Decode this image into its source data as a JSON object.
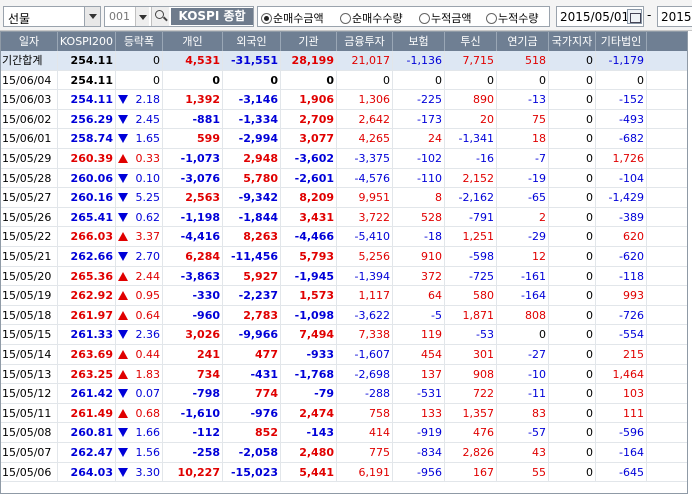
{
  "toolbar": {
    "market_select": "선물",
    "code": "001",
    "index_name": "KOSPI 종합",
    "radio_options": [
      {
        "label": "순매수금액",
        "selected": true
      },
      {
        "label": "순매수수량",
        "selected": false
      },
      {
        "label": "누적금액",
        "selected": false
      },
      {
        "label": "누적수량",
        "selected": false
      }
    ],
    "start_date": "2015/05/01",
    "end_date_partial": "2015",
    "date_separator": "-"
  },
  "table": {
    "columns": [
      "일자",
      "KOSPI200",
      "등락폭",
      "개인",
      "외국인",
      "기관",
      "금융투자",
      "보험",
      "투신",
      "연기금",
      "국가지자",
      "기타법인"
    ],
    "rows": [
      {
        "date": "기간합계",
        "kospi": "254.11",
        "dir": "none",
        "chg": "0",
        "indiv": "4,531",
        "foreign": "-31,551",
        "inst": "28,199",
        "fin": "21,017",
        "ins": "-1,136",
        "trust": "7,715",
        "pension": "518",
        "gov": "0",
        "other": "-1,179"
      },
      {
        "date": "15/06/04",
        "kospi": "254.11",
        "dir": "none",
        "chg": "0",
        "indiv": "0",
        "foreign": "0",
        "inst": "0",
        "fin": "0",
        "ins": "0",
        "trust": "0",
        "pension": "0",
        "gov": "0",
        "other": "0"
      },
      {
        "date": "15/06/03",
        "kospi": "254.11",
        "dir": "dn",
        "chg": "2.18",
        "indiv": "1,392",
        "foreign": "-3,146",
        "inst": "1,906",
        "fin": "1,306",
        "ins": "-225",
        "trust": "890",
        "pension": "-13",
        "gov": "0",
        "other": "-152"
      },
      {
        "date": "15/06/02",
        "kospi": "256.29",
        "dir": "dn",
        "chg": "2.45",
        "indiv": "-881",
        "foreign": "-1,334",
        "inst": "2,709",
        "fin": "2,642",
        "ins": "-173",
        "trust": "20",
        "pension": "75",
        "gov": "0",
        "other": "-493"
      },
      {
        "date": "15/06/01",
        "kospi": "258.74",
        "dir": "dn",
        "chg": "1.65",
        "indiv": "599",
        "foreign": "-2,994",
        "inst": "3,077",
        "fin": "4,265",
        "ins": "24",
        "trust": "-1,341",
        "pension": "18",
        "gov": "0",
        "other": "-682"
      },
      {
        "date": "15/05/29",
        "kospi": "260.39",
        "dir": "up",
        "chg": "0.33",
        "indiv": "-1,073",
        "foreign": "2,948",
        "inst": "-3,602",
        "fin": "-3,375",
        "ins": "-102",
        "trust": "-16",
        "pension": "-7",
        "gov": "0",
        "other": "1,726"
      },
      {
        "date": "15/05/28",
        "kospi": "260.06",
        "dir": "dn",
        "chg": "0.10",
        "indiv": "-3,076",
        "foreign": "5,780",
        "inst": "-2,601",
        "fin": "-4,576",
        "ins": "-110",
        "trust": "2,152",
        "pension": "-19",
        "gov": "0",
        "other": "-104"
      },
      {
        "date": "15/05/27",
        "kospi": "260.16",
        "dir": "dn",
        "chg": "5.25",
        "indiv": "2,563",
        "foreign": "-9,342",
        "inst": "8,209",
        "fin": "9,951",
        "ins": "8",
        "trust": "-2,162",
        "pension": "-65",
        "gov": "0",
        "other": "-1,429"
      },
      {
        "date": "15/05/26",
        "kospi": "265.41",
        "dir": "dn",
        "chg": "0.62",
        "indiv": "-1,198",
        "foreign": "-1,844",
        "inst": "3,431",
        "fin": "3,722",
        "ins": "528",
        "trust": "-791",
        "pension": "2",
        "gov": "0",
        "other": "-389"
      },
      {
        "date": "15/05/22",
        "kospi": "266.03",
        "dir": "up",
        "chg": "3.37",
        "indiv": "-4,416",
        "foreign": "8,263",
        "inst": "-4,466",
        "fin": "-5,410",
        "ins": "-18",
        "trust": "1,251",
        "pension": "-29",
        "gov": "0",
        "other": "620"
      },
      {
        "date": "15/05/21",
        "kospi": "262.66",
        "dir": "dn",
        "chg": "2.70",
        "indiv": "6,284",
        "foreign": "-11,456",
        "inst": "5,793",
        "fin": "5,256",
        "ins": "910",
        "trust": "-598",
        "pension": "12",
        "gov": "0",
        "other": "-620"
      },
      {
        "date": "15/05/20",
        "kospi": "265.36",
        "dir": "up",
        "chg": "2.44",
        "indiv": "-3,863",
        "foreign": "5,927",
        "inst": "-1,945",
        "fin": "-1,394",
        "ins": "372",
        "trust": "-725",
        "pension": "-161",
        "gov": "0",
        "other": "-118"
      },
      {
        "date": "15/05/19",
        "kospi": "262.92",
        "dir": "up",
        "chg": "0.95",
        "indiv": "-330",
        "foreign": "-2,237",
        "inst": "1,573",
        "fin": "1,117",
        "ins": "64",
        "trust": "580",
        "pension": "-164",
        "gov": "0",
        "other": "993"
      },
      {
        "date": "15/05/18",
        "kospi": "261.97",
        "dir": "up",
        "chg": "0.64",
        "indiv": "-960",
        "foreign": "2,783",
        "inst": "-1,098",
        "fin": "-3,622",
        "ins": "-5",
        "trust": "1,871",
        "pension": "808",
        "gov": "0",
        "other": "-726"
      },
      {
        "date": "15/05/15",
        "kospi": "261.33",
        "dir": "dn",
        "chg": "2.36",
        "indiv": "3,026",
        "foreign": "-9,966",
        "inst": "7,494",
        "fin": "7,338",
        "ins": "119",
        "trust": "-53",
        "pension": "0",
        "gov": "0",
        "other": "-554"
      },
      {
        "date": "15/05/14",
        "kospi": "263.69",
        "dir": "up",
        "chg": "0.44",
        "indiv": "241",
        "foreign": "477",
        "inst": "-933",
        "fin": "-1,607",
        "ins": "454",
        "trust": "301",
        "pension": "-27",
        "gov": "0",
        "other": "215"
      },
      {
        "date": "15/05/13",
        "kospi": "263.25",
        "dir": "up",
        "chg": "1.83",
        "indiv": "734",
        "foreign": "-431",
        "inst": "-1,768",
        "fin": "-2,698",
        "ins": "137",
        "trust": "908",
        "pension": "-10",
        "gov": "0",
        "other": "1,464"
      },
      {
        "date": "15/05/12",
        "kospi": "261.42",
        "dir": "dn",
        "chg": "0.07",
        "indiv": "-798",
        "foreign": "774",
        "inst": "-79",
        "fin": "-288",
        "ins": "-531",
        "trust": "722",
        "pension": "-11",
        "gov": "0",
        "other": "103"
      },
      {
        "date": "15/05/11",
        "kospi": "261.49",
        "dir": "up",
        "chg": "0.68",
        "indiv": "-1,610",
        "foreign": "-976",
        "inst": "2,474",
        "fin": "758",
        "ins": "133",
        "trust": "1,357",
        "pension": "83",
        "gov": "0",
        "other": "111"
      },
      {
        "date": "15/05/08",
        "kospi": "260.81",
        "dir": "dn",
        "chg": "1.66",
        "indiv": "-112",
        "foreign": "852",
        "inst": "-143",
        "fin": "414",
        "ins": "-919",
        "trust": "476",
        "pension": "-57",
        "gov": "0",
        "other": "-596"
      },
      {
        "date": "15/05/07",
        "kospi": "262.47",
        "dir": "dn",
        "chg": "1.56",
        "indiv": "-258",
        "foreign": "-2,058",
        "inst": "2,480",
        "fin": "775",
        "ins": "-834",
        "trust": "2,826",
        "pension": "43",
        "gov": "0",
        "other": "-164"
      },
      {
        "date": "15/05/06",
        "kospi": "264.03",
        "dir": "dn",
        "chg": "3.30",
        "indiv": "10,227",
        "foreign": "-15,023",
        "inst": "5,441",
        "fin": "6,191",
        "ins": "-956",
        "trust": "167",
        "pension": "55",
        "gov": "0",
        "other": "-645"
      }
    ]
  },
  "colors": {
    "up": "#e00000",
    "down": "#0000d8",
    "header_bg": "#6f7f93",
    "summary_bg": "#dde7f3"
  }
}
